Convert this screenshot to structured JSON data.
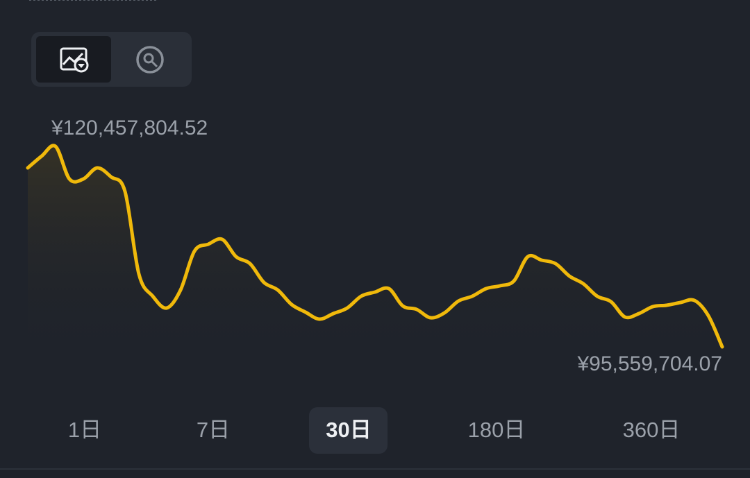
{
  "chart_data": {
    "type": "line",
    "max_label": "¥120,457,804.52",
    "min_label": "¥95,559,704.07",
    "color": "#f0b90b",
    "ylim": [
      95559704.07,
      120457804.52
    ],
    "values": [
      117787074,
      119251668,
      120457804.52,
      116408632,
      116408632,
      117787074,
      116667090,
      114857885,
      104605726,
      101848842,
      100384248,
      102624216,
      107448761,
      108310287,
      108913356,
      106759541,
      105898015,
      103571894,
      102624216,
      100815011,
      99867333,
      99005807,
      99695027,
      100384248,
      101848842,
      102365758,
      102796521,
      100642706,
      100211943,
      99178112,
      99781180,
      101245774,
      101848842,
      102796521,
      103141131,
      103744200,
      106759541,
      106328778,
      105898015,
      104347268,
      103399589,
      101848842,
      101159622,
      99264264,
      99695027,
      100556553,
      100728859,
      101073469,
      101331927,
      99436570,
      95559704.07
    ]
  },
  "periods": [
    "1日",
    "7日",
    "30日",
    "180日",
    "360日"
  ],
  "selected_period": 2
}
